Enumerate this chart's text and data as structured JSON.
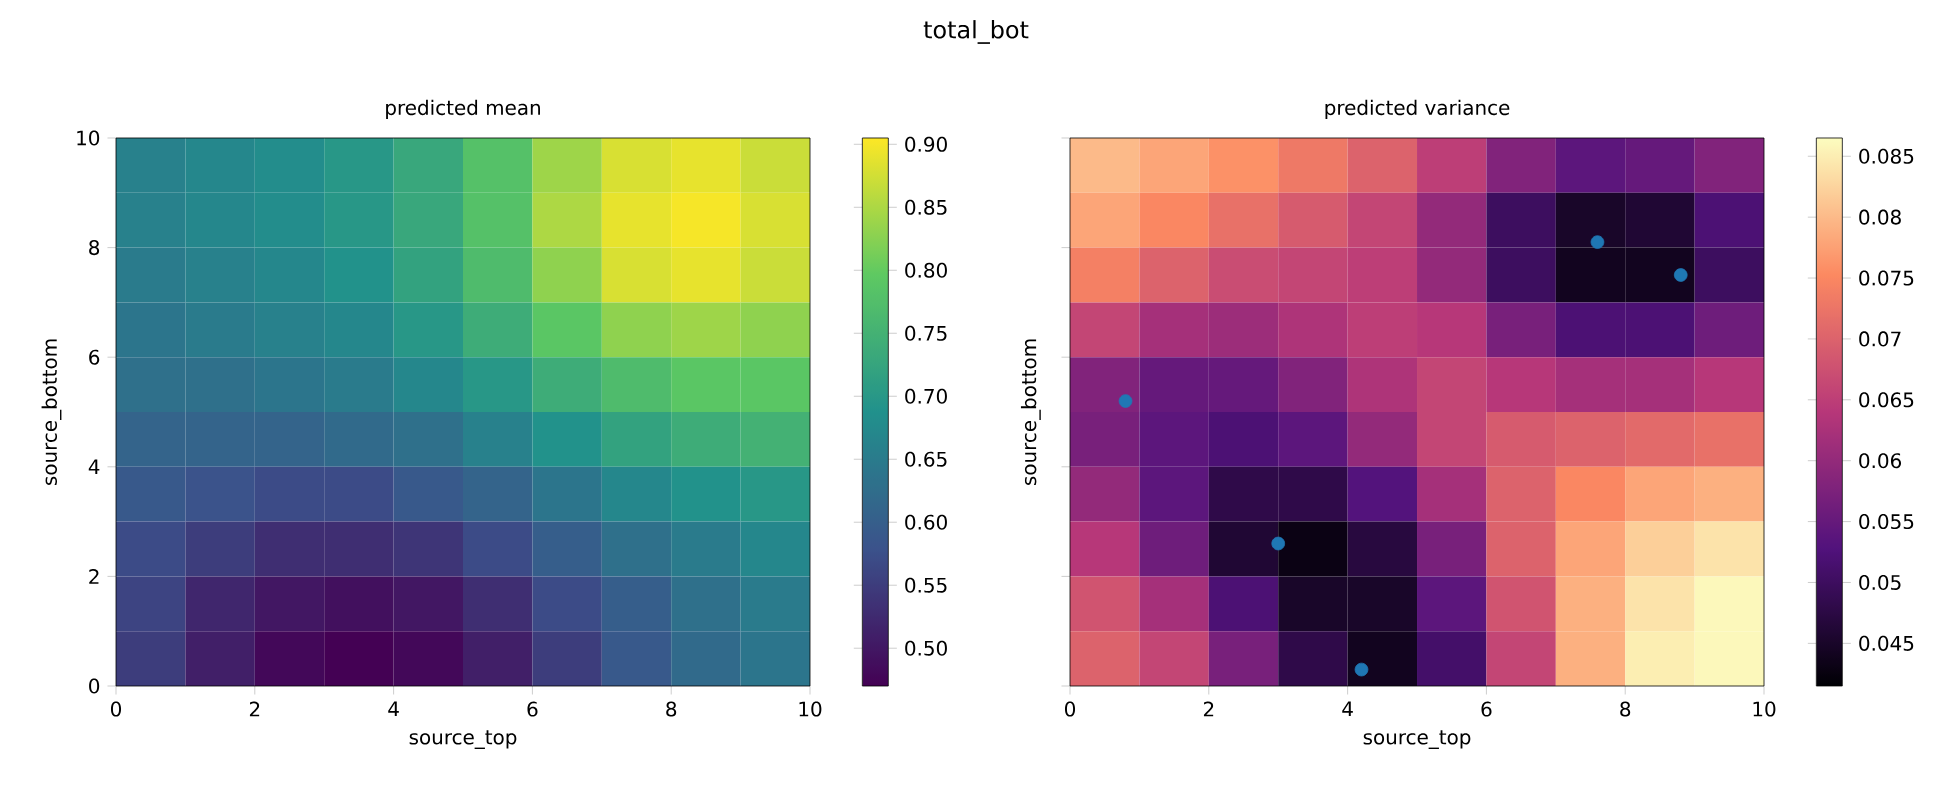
{
  "chart_data": [
    {
      "type": "heatmap",
      "title": "predicted mean",
      "xlabel": "source_top",
      "ylabel": "source_bottom",
      "annotations": [
        "total_bot"
      ],
      "xlim": [
        0,
        10
      ],
      "ylim": [
        0,
        10
      ],
      "xticks": [
        0,
        2,
        4,
        6,
        8,
        10
      ],
      "yticks": [
        0,
        2,
        4,
        6,
        8,
        10
      ],
      "colors": [
        "#440154",
        "#3b528b",
        "#21918c",
        "#5ec962",
        "#fde725"
      ],
      "clim": [
        0.47,
        0.905
      ],
      "cticks": [
        {
          "value": 0.5,
          "label": "0.50"
        },
        {
          "value": 0.55,
          "label": "0.55"
        },
        {
          "value": 0.6,
          "label": "0.60"
        },
        {
          "value": 0.65,
          "label": "0.65"
        },
        {
          "value": 0.7,
          "label": "0.70"
        },
        {
          "value": 0.75,
          "label": "0.75"
        },
        {
          "value": 0.8,
          "label": "0.80"
        },
        {
          "value": 0.85,
          "label": "0.85"
        },
        {
          "value": 0.9,
          "label": "0.90"
        }
      ],
      "cells": [
        [
          0.66,
          0.67,
          0.68,
          0.7,
          0.73,
          0.78,
          0.84,
          0.88,
          0.89,
          0.87
        ],
        [
          0.66,
          0.67,
          0.68,
          0.7,
          0.73,
          0.78,
          0.85,
          0.89,
          0.9,
          0.88
        ],
        [
          0.65,
          0.66,
          0.67,
          0.69,
          0.72,
          0.77,
          0.83,
          0.88,
          0.89,
          0.87
        ],
        [
          0.64,
          0.65,
          0.66,
          0.67,
          0.7,
          0.74,
          0.79,
          0.83,
          0.84,
          0.83
        ],
        [
          0.63,
          0.63,
          0.64,
          0.65,
          0.67,
          0.7,
          0.74,
          0.77,
          0.79,
          0.79
        ],
        [
          0.61,
          0.61,
          0.61,
          0.62,
          0.63,
          0.66,
          0.69,
          0.72,
          0.74,
          0.75
        ],
        [
          0.59,
          0.58,
          0.57,
          0.57,
          0.59,
          0.61,
          0.64,
          0.67,
          0.69,
          0.7
        ],
        [
          0.57,
          0.55,
          0.53,
          0.53,
          0.54,
          0.57,
          0.6,
          0.63,
          0.65,
          0.67
        ],
        [
          0.56,
          0.52,
          0.5,
          0.49,
          0.5,
          0.53,
          0.57,
          0.6,
          0.63,
          0.65
        ],
        [
          0.55,
          0.51,
          0.48,
          0.47,
          0.48,
          0.51,
          0.55,
          0.59,
          0.62,
          0.64
        ]
      ]
    },
    {
      "type": "heatmap",
      "title": "predicted variance",
      "xlabel": "source_top",
      "ylabel": "source_bottom",
      "tick_labels": "x",
      "xlim": [
        0,
        10
      ],
      "ylim": [
        0,
        10
      ],
      "xticks": [
        0,
        2,
        4,
        6,
        8,
        10
      ],
      "yticks": [
        0,
        2,
        4,
        6,
        8,
        10
      ],
      "colors": [
        "#000004",
        "#51127c",
        "#b73779",
        "#fc8961",
        "#fcfdbf"
      ],
      "clim": [
        0.0415,
        0.0865
      ],
      "cticks": [
        0.045,
        0.05,
        0.055,
        0.06,
        0.065,
        0.07,
        0.075,
        0.08,
        0.085
      ],
      "marker": "circle",
      "series": [
        {
          "type": "scatter",
          "color": "#1f77b4",
          "x": [
            0.8,
            3.0,
            4.2,
            7.6,
            8.8
          ],
          "values": [
            5.2,
            2.6,
            0.3,
            8.1,
            7.5
          ]
        }
      ],
      "cells": [
        [
          0.08,
          0.078,
          0.076,
          0.073,
          0.07,
          0.065,
          0.058,
          0.054,
          0.055,
          0.058
        ],
        [
          0.078,
          0.075,
          0.072,
          0.069,
          0.066,
          0.06,
          0.05,
          0.045,
          0.046,
          0.052
        ],
        [
          0.074,
          0.07,
          0.067,
          0.066,
          0.065,
          0.06,
          0.05,
          0.044,
          0.044,
          0.05
        ],
        [
          0.066,
          0.062,
          0.061,
          0.063,
          0.065,
          0.064,
          0.057,
          0.052,
          0.052,
          0.056
        ],
        [
          0.058,
          0.055,
          0.055,
          0.058,
          0.063,
          0.066,
          0.064,
          0.062,
          0.062,
          0.064
        ],
        [
          0.057,
          0.054,
          0.052,
          0.054,
          0.06,
          0.066,
          0.069,
          0.07,
          0.071,
          0.072
        ],
        [
          0.06,
          0.054,
          0.048,
          0.048,
          0.053,
          0.062,
          0.07,
          0.075,
          0.078,
          0.079
        ],
        [
          0.064,
          0.056,
          0.046,
          0.043,
          0.047,
          0.057,
          0.07,
          0.078,
          0.082,
          0.084
        ],
        [
          0.068,
          0.062,
          0.052,
          0.045,
          0.045,
          0.054,
          0.068,
          0.079,
          0.084,
          0.086
        ],
        [
          0.07,
          0.066,
          0.057,
          0.048,
          0.044,
          0.051,
          0.066,
          0.079,
          0.085,
          0.086
        ]
      ]
    }
  ]
}
